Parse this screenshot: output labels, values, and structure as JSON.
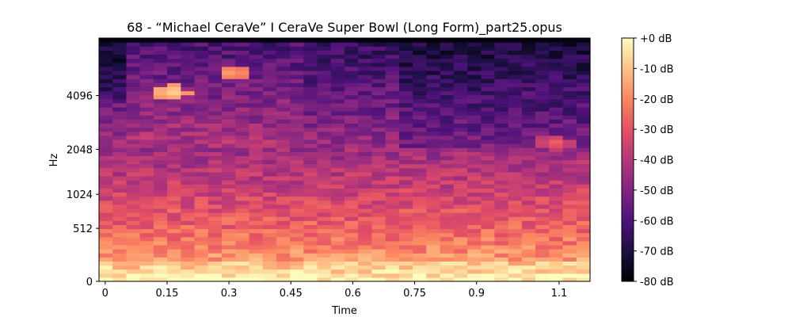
{
  "chart_data": {
    "type": "heatmap",
    "title": "68 - “Michael CeraVe” I CeraVe Super Bowl (Long Form)_part25.opus",
    "xlabel": "Time",
    "ylabel": "Hz",
    "x_ticks": [
      {
        "value": 0,
        "label": "0"
      },
      {
        "value": 0.15,
        "label": "0.15"
      },
      {
        "value": 0.3,
        "label": "0.3"
      },
      {
        "value": 0.45,
        "label": "0.45"
      },
      {
        "value": 0.6,
        "label": "0.6"
      },
      {
        "value": 0.75,
        "label": "0.75"
      },
      {
        "value": 0.9,
        "label": "0.9"
      },
      {
        "value": 1.1,
        "label": "1.1"
      }
    ],
    "xlim": [
      -0.015,
      1.175
    ],
    "y_scale": "mel",
    "y_ticks": [
      {
        "value": 0,
        "label": "0"
      },
      {
        "value": 512,
        "label": "512"
      },
      {
        "value": 1024,
        "label": "1024"
      },
      {
        "value": 2048,
        "label": "2048"
      },
      {
        "value": 4096,
        "label": "4096"
      }
    ],
    "ylim": [
      0,
      8000
    ],
    "colorbar": {
      "colormap": "magma",
      "range": [
        -80,
        0
      ],
      "ticks": [
        {
          "value": 0,
          "label": "+0 dB"
        },
        {
          "value": -10,
          "label": "-10 dB"
        },
        {
          "value": -20,
          "label": "-20 dB"
        },
        {
          "value": -30,
          "label": "-30 dB"
        },
        {
          "value": -40,
          "label": "-40 dB"
        },
        {
          "value": -50,
          "label": "-50 dB"
        },
        {
          "value": -60,
          "label": "-60 dB"
        },
        {
          "value": -70,
          "label": "-70 dB"
        },
        {
          "value": -80,
          "label": "-80 dB"
        }
      ]
    },
    "time_bins": 36,
    "freq_bins": 60,
    "hotspots": [
      {
        "t": 0.16,
        "f": 4300,
        "db": -6,
        "note": "bright patch"
      },
      {
        "t": 0.31,
        "f": 5400,
        "db": -14
      },
      {
        "t": 1.09,
        "f": 2250,
        "db": -26
      }
    ]
  }
}
